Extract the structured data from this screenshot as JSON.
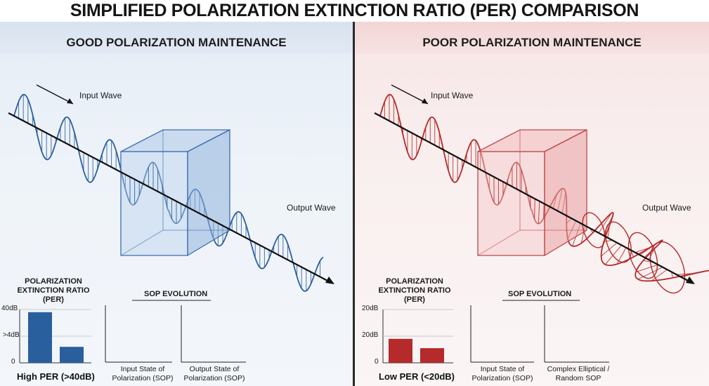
{
  "title": "SIMPLIFIED POLARIZATION EXTINCTION RATIO (PER) COMPARISON",
  "left": {
    "heading": "GOOD POLARIZATION MAINTENANCE",
    "input_label": "Input Wave",
    "output_label": "Output Wave",
    "per_title_1": "POLARIZATION",
    "per_title_2": "EXTINCTION RATIO",
    "per_title_3": "(PER)",
    "ticks": [
      "40dB",
      ">4dB",
      "0"
    ],
    "per_label": "High PER (>40dB)",
    "sop_title": "SOP EVOLUTION",
    "sop_input_1": "Input State of",
    "sop_input_2": "Polarization (SOP)",
    "sop_output_1": "Output State of",
    "sop_output_2": "Polarization (SOP)",
    "color": "#2a5f9e"
  },
  "right": {
    "heading": "POOR POLARIZATION MAINTENANCE",
    "input_label": "Input Wave",
    "output_label": "Output Wave",
    "per_title_1": "POLARIZATION",
    "per_title_2": "EXTINCTION RATIO",
    "per_title_3": "(PER)",
    "ticks": [
      "20dB",
      "20dB",
      "0"
    ],
    "per_label": "Low PER (<20dB)",
    "sop_title": "SOP EVOLUTION",
    "sop_input_1": "Input State of",
    "sop_input_2": "Polarization (SOP)",
    "sop_output_1": "Complex Elliptical /",
    "sop_output_2": "Random SOP",
    "color": "#b52a2a"
  },
  "chart_data": [
    {
      "type": "bar",
      "title": "",
      "categories": [
        "",
        ""
      ],
      "values": [
        38,
        12
      ],
      "ylim": [
        0,
        40
      ],
      "tick_labels": [
        "40dB",
        ">4dB",
        "0"
      ]
    },
    {
      "type": "bar",
      "title": "",
      "categories": [
        "",
        ""
      ],
      "values": [
        18,
        11
      ],
      "ylim": [
        0,
        40
      ],
      "tick_labels": [
        "20dB",
        "20dB",
        "0"
      ]
    }
  ]
}
